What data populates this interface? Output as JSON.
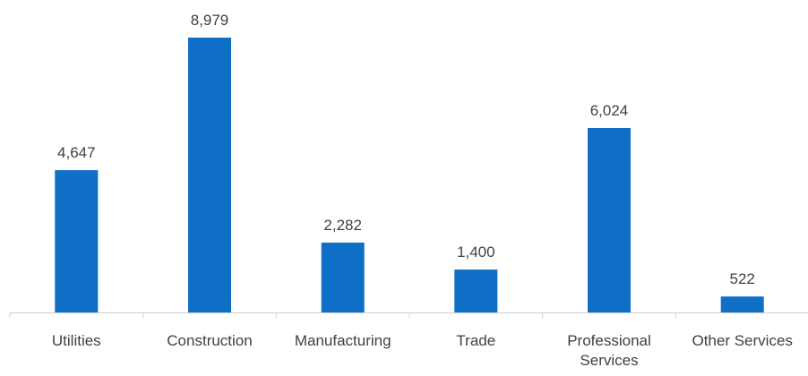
{
  "chart_data": {
    "type": "bar",
    "categories": [
      "Utilities",
      "Construction",
      "Manufacturing",
      "Trade",
      "Professional Services",
      "Other Services"
    ],
    "category_label_lines": [
      [
        "Utilities"
      ],
      [
        "Construction"
      ],
      [
        "Manufacturing"
      ],
      [
        "Trade"
      ],
      [
        "Professional",
        "Services"
      ],
      [
        "Other Services"
      ]
    ],
    "values": [
      4647,
      8979,
      2282,
      1400,
      6024,
      522
    ],
    "value_labels": [
      "4,647",
      "8,979",
      "2,282",
      "1,400",
      "6,024",
      "522"
    ],
    "title": "",
    "xlabel": "",
    "ylabel": "",
    "ylim": [
      0,
      8979
    ],
    "grid": false,
    "legend": "none",
    "bar_color": "#0F6FC6",
    "axis_color": "#D0D0D0",
    "label_color": "#404040"
  }
}
